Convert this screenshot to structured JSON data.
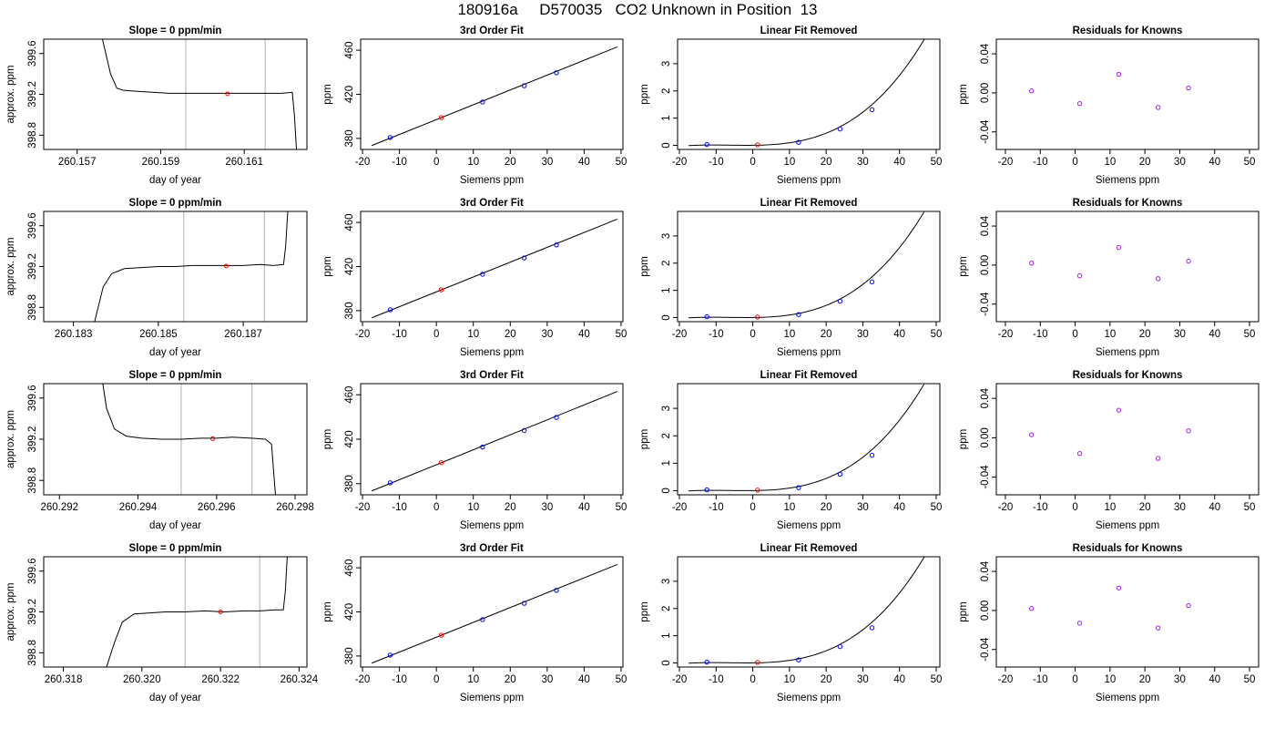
{
  "page": {
    "title": "180916a     D570035   CO2 Unknown in Position  13"
  },
  "colors": {
    "line": "#000000",
    "known_point": "#0000ff",
    "unknown_point": "#ff0000",
    "residual_point": "#a020f0",
    "vline": "#bebebe"
  },
  "chart_data": [
    {
      "type": "line",
      "row": 1,
      "title": "Slope =  0  ppm/min",
      "xlabel": "day of year",
      "ylabel": "approx. ppm",
      "xlim": [
        260.1562,
        260.1625
      ],
      "ylim": [
        398.66,
        399.74
      ],
      "xticks": [
        260.157,
        260.159,
        260.161
      ],
      "xtick_labels": [
        "260.157",
        "260.159",
        "260.161"
      ],
      "yticks": [
        398.8,
        399.2,
        399.6
      ],
      "ytick_labels": [
        "398.8",
        "399.2",
        "399.6"
      ],
      "vlines": [
        260.1596,
        260.1615
      ],
      "trace": [
        [
          260.1576,
          399.75
        ],
        [
          260.1578,
          399.4
        ],
        [
          260.15795,
          399.26
        ],
        [
          260.1581,
          399.24
        ],
        [
          260.1584,
          399.23
        ],
        [
          260.1588,
          399.22
        ],
        [
          260.1592,
          399.21
        ],
        [
          260.1596,
          399.21
        ],
        [
          260.1601,
          399.21
        ],
        [
          260.1606,
          399.21
        ],
        [
          260.1611,
          399.21
        ],
        [
          260.16155,
          399.21
        ],
        [
          260.1619,
          399.21
        ],
        [
          260.16215,
          399.22
        ],
        [
          260.1622,
          399.0
        ],
        [
          260.16225,
          398.66
        ]
      ],
      "marker": [
        260.1606,
        399.205
      ]
    },
    {
      "type": "line",
      "row": 2,
      "title": "Slope =  0  ppm/min",
      "xlabel": "day of year",
      "ylabel": "approx. ppm",
      "xlim": [
        260.1823,
        260.1885
      ],
      "ylim": [
        398.66,
        399.74
      ],
      "xticks": [
        260.183,
        260.185,
        260.187
      ],
      "xtick_labels": [
        "260.183",
        "260.185",
        "260.187"
      ],
      "vlines": [
        260.1856,
        260.1875
      ],
      "yticks": [
        398.8,
        399.2,
        399.6
      ],
      "ytick_labels": [
        "398.8",
        "399.2",
        "399.6"
      ],
      "trace": [
        [
          260.1835,
          398.66
        ],
        [
          260.1837,
          399.0
        ],
        [
          260.1839,
          399.13
        ],
        [
          260.1842,
          399.18
        ],
        [
          260.1846,
          399.19
        ],
        [
          260.185,
          399.2
        ],
        [
          260.1854,
          399.2
        ],
        [
          260.1858,
          399.21
        ],
        [
          260.1862,
          399.21
        ],
        [
          260.1866,
          399.21
        ],
        [
          260.187,
          399.21
        ],
        [
          260.1874,
          399.22
        ],
        [
          260.1877,
          399.21
        ],
        [
          260.18795,
          399.22
        ],
        [
          260.188,
          399.4
        ],
        [
          260.18805,
          399.75
        ]
      ],
      "marker": [
        260.1866,
        399.205
      ]
    },
    {
      "type": "line",
      "row": 3,
      "title": "Slope =  0  ppm/min",
      "xlabel": "day of year",
      "ylabel": "approx. ppm",
      "xlim": [
        260.2916,
        260.2983
      ],
      "ylim": [
        398.66,
        399.74
      ],
      "xticks": [
        260.292,
        260.294,
        260.296,
        260.298
      ],
      "xtick_labels": [
        "260.292",
        "260.294",
        "260.296",
        "260.298"
      ],
      "vlines": [
        260.2951,
        260.2969
      ],
      "yticks": [
        398.8,
        399.2,
        399.6
      ],
      "ytick_labels": [
        "398.8",
        "399.2",
        "399.6"
      ],
      "trace": [
        [
          260.2931,
          399.75
        ],
        [
          260.2932,
          399.5
        ],
        [
          260.2934,
          399.3
        ],
        [
          260.2937,
          399.23
        ],
        [
          260.2941,
          399.21
        ],
        [
          260.2946,
          399.2
        ],
        [
          260.2951,
          399.2
        ],
        [
          260.2956,
          399.21
        ],
        [
          260.296,
          399.21
        ],
        [
          260.2964,
          399.22
        ],
        [
          260.2969,
          399.21
        ],
        [
          260.29725,
          399.2
        ],
        [
          260.2974,
          399.15
        ],
        [
          260.29745,
          398.9
        ],
        [
          260.2975,
          398.66
        ]
      ],
      "marker": [
        260.2959,
        399.205
      ]
    },
    {
      "type": "line",
      "row": 4,
      "title": "Slope =  0  ppm/min",
      "xlabel": "day of year",
      "ylabel": "approx. ppm",
      "xlim": [
        260.3175,
        260.3242
      ],
      "ylim": [
        398.66,
        399.74
      ],
      "xticks": [
        260.318,
        260.32,
        260.322,
        260.324
      ],
      "xtick_labels": [
        "260.318",
        "260.320",
        "260.322",
        "260.324"
      ],
      "vlines": [
        260.3211,
        260.323
      ],
      "yticks": [
        398.8,
        399.2,
        399.6
      ],
      "ytick_labels": [
        "398.8",
        "399.2",
        "399.6"
      ],
      "trace": [
        [
          260.3191,
          398.66
        ],
        [
          260.3193,
          398.9
        ],
        [
          260.3195,
          399.1
        ],
        [
          260.3198,
          399.18
        ],
        [
          260.3202,
          399.19
        ],
        [
          260.3206,
          399.2
        ],
        [
          260.3211,
          399.2
        ],
        [
          260.3216,
          399.21
        ],
        [
          260.3221,
          399.2
        ],
        [
          260.3226,
          399.21
        ],
        [
          260.323,
          399.21
        ],
        [
          260.3234,
          399.22
        ],
        [
          260.3236,
          399.22
        ],
        [
          260.32365,
          399.4
        ],
        [
          260.3237,
          399.75
        ]
      ],
      "marker": [
        260.322,
        399.2
      ]
    },
    {
      "type": "scatter",
      "row": 1,
      "title": "3rd Order Fit",
      "xlabel": "Siemens ppm",
      "ylabel": "ppm",
      "xlim": [
        -20.5,
        50.5
      ],
      "ylim": [
        370,
        470
      ],
      "xticks": [
        -20,
        -10,
        0,
        10,
        20,
        30,
        40,
        50
      ],
      "xtick_labels": [
        "-20",
        "-10",
        "0",
        "10",
        "20",
        "30",
        "40",
        "50"
      ],
      "yticks": [
        380,
        420,
        460
      ],
      "ytick_labels": [
        "380",
        "420",
        "460"
      ],
      "curve": [
        [
          -17.5,
          373.5
        ],
        [
          49,
          463
        ]
      ],
      "points_known": [
        [
          -12.5,
          380.8
        ],
        [
          12.5,
          413.0
        ],
        [
          23.8,
          427.8
        ],
        [
          32.5,
          439.6
        ]
      ],
      "points_unknown": [
        [
          1.3,
          398.9
        ]
      ]
    },
    {
      "type": "scatter",
      "row": 2,
      "title": "3rd Order Fit",
      "xlabel": "Siemens ppm",
      "ylabel": "ppm",
      "xlim": [
        -20.5,
        50.5
      ],
      "ylim": [
        370,
        470
      ],
      "xticks": [
        -20,
        -10,
        0,
        10,
        20,
        30,
        40,
        50
      ],
      "xtick_labels": [
        "-20",
        "-10",
        "0",
        "10",
        "20",
        "30",
        "40",
        "50"
      ],
      "yticks": [
        380,
        420,
        460
      ],
      "ytick_labels": [
        "380",
        "420",
        "460"
      ],
      "curve": [
        [
          -17.5,
          373.5
        ],
        [
          49,
          463
        ]
      ],
      "points_known": [
        [
          -12.5,
          380.8
        ],
        [
          12.5,
          413.0
        ],
        [
          23.8,
          427.8
        ],
        [
          32.5,
          439.6
        ]
      ],
      "points_unknown": [
        [
          1.3,
          398.9
        ]
      ]
    },
    {
      "type": "scatter",
      "row": 3,
      "title": "3rd Order Fit",
      "xlabel": "Siemens ppm",
      "ylabel": "ppm",
      "xlim": [
        -20.5,
        50.5
      ],
      "ylim": [
        370,
        470
      ],
      "xticks": [
        -20,
        -10,
        0,
        10,
        20,
        30,
        40,
        50
      ],
      "xtick_labels": [
        "-20",
        "-10",
        "0",
        "10",
        "20",
        "30",
        "40",
        "50"
      ],
      "yticks": [
        380,
        420,
        460
      ],
      "ytick_labels": [
        "380",
        "420",
        "460"
      ],
      "curve": [
        [
          -17.5,
          373.5
        ],
        [
          49,
          463
        ]
      ],
      "points_known": [
        [
          -12.5,
          380.8
        ],
        [
          12.5,
          413.0
        ],
        [
          23.8,
          427.8
        ],
        [
          32.5,
          439.6
        ]
      ],
      "points_unknown": [
        [
          1.3,
          398.9
        ]
      ]
    },
    {
      "type": "scatter",
      "row": 4,
      "title": "3rd Order Fit",
      "xlabel": "Siemens ppm",
      "ylabel": "ppm",
      "xlim": [
        -20.5,
        50.5
      ],
      "ylim": [
        370,
        470
      ],
      "xticks": [
        -20,
        -10,
        0,
        10,
        20,
        30,
        40,
        50
      ],
      "xtick_labels": [
        "-20",
        "-10",
        "0",
        "10",
        "20",
        "30",
        "40",
        "50"
      ],
      "yticks": [
        380,
        420,
        460
      ],
      "ytick_labels": [
        "380",
        "420",
        "460"
      ],
      "curve": [
        [
          -17.5,
          373.5
        ],
        [
          49,
          463
        ]
      ],
      "points_known": [
        [
          -12.5,
          380.8
        ],
        [
          12.5,
          413.0
        ],
        [
          23.8,
          427.8
        ],
        [
          32.5,
          439.6
        ]
      ],
      "points_unknown": [
        [
          1.3,
          398.9
        ]
      ]
    },
    {
      "type": "scatter",
      "row": 1,
      "title": "Linear Fit Removed",
      "xlabel": "Siemens ppm",
      "ylabel": "ppm",
      "xlim": [
        -20.5,
        51
      ],
      "ylim": [
        -0.15,
        3.9
      ],
      "xticks": [
        -20,
        -10,
        0,
        10,
        20,
        30,
        40,
        50
      ],
      "xtick_labels": [
        "-20",
        "-10",
        "0",
        "10",
        "20",
        "30",
        "40",
        "50"
      ],
      "yticks": [
        0,
        1,
        2,
        3
      ],
      "ytick_labels": [
        "0",
        "1",
        "2",
        "3"
      ],
      "curve_poly": [
        0.003125,
        0.001438,
        0.0005066,
        2.656e-05
      ],
      "curve_x": [
        -17.5,
        49
      ],
      "points_known": [
        [
          -12.5,
          0.03
        ],
        [
          12.5,
          0.11
        ],
        [
          23.8,
          0.6
        ],
        [
          32.5,
          1.31
        ]
      ],
      "points_unknown": [
        [
          1.3,
          0.02
        ]
      ]
    },
    {
      "type": "scatter",
      "row": 2,
      "title": "Linear Fit Removed",
      "xlabel": "Siemens ppm",
      "ylabel": "ppm",
      "xlim": [
        -20.5,
        51
      ],
      "ylim": [
        -0.15,
        3.9
      ],
      "xticks": [
        -20,
        -10,
        0,
        10,
        20,
        30,
        40,
        50
      ],
      "xtick_labels": [
        "-20",
        "-10",
        "0",
        "10",
        "20",
        "30",
        "40",
        "50"
      ],
      "yticks": [
        0,
        1,
        2,
        3
      ],
      "ytick_labels": [
        "0",
        "1",
        "2",
        "3"
      ],
      "curve_poly": [
        0.003125,
        0.001438,
        0.0005066,
        2.656e-05
      ],
      "curve_x": [
        -17.5,
        49
      ],
      "points_known": [
        [
          -12.5,
          0.03
        ],
        [
          12.5,
          0.11
        ],
        [
          23.8,
          0.6
        ],
        [
          32.5,
          1.31
        ]
      ],
      "points_unknown": [
        [
          1.3,
          0.02
        ]
      ]
    },
    {
      "type": "scatter",
      "row": 3,
      "title": "Linear Fit Removed",
      "xlabel": "Siemens ppm",
      "ylabel": "ppm",
      "xlim": [
        -20.5,
        51
      ],
      "ylim": [
        -0.15,
        3.9
      ],
      "xticks": [
        -20,
        -10,
        0,
        10,
        20,
        30,
        40,
        50
      ],
      "xtick_labels": [
        "-20",
        "-10",
        "0",
        "10",
        "20",
        "30",
        "40",
        "50"
      ],
      "yticks": [
        0,
        1,
        2,
        3
      ],
      "ytick_labels": [
        "0",
        "1",
        "2",
        "3"
      ],
      "curve_poly": [
        0.003125,
        0.001438,
        0.0005066,
        2.656e-05
      ],
      "curve_x": [
        -17.5,
        49
      ],
      "points_known": [
        [
          -12.5,
          0.03
        ],
        [
          12.5,
          0.11
        ],
        [
          23.8,
          0.6
        ],
        [
          32.5,
          1.29
        ]
      ],
      "points_unknown": [
        [
          1.3,
          0.02
        ]
      ]
    },
    {
      "type": "scatter",
      "row": 4,
      "title": "Linear Fit Removed",
      "xlabel": "Siemens ppm",
      "ylabel": "ppm",
      "xlim": [
        -20.5,
        51
      ],
      "ylim": [
        -0.15,
        3.9
      ],
      "xticks": [
        -20,
        -10,
        0,
        10,
        20,
        30,
        40,
        50
      ],
      "xtick_labels": [
        "-20",
        "-10",
        "0",
        "10",
        "20",
        "30",
        "40",
        "50"
      ],
      "yticks": [
        0,
        1,
        2,
        3
      ],
      "ytick_labels": [
        "0",
        "1",
        "2",
        "3"
      ],
      "curve_poly": [
        0.003125,
        0.001438,
        0.0005066,
        2.656e-05
      ],
      "curve_x": [
        -17.5,
        49
      ],
      "points_known": [
        [
          -12.5,
          0.03
        ],
        [
          12.5,
          0.11
        ],
        [
          23.8,
          0.6
        ],
        [
          32.5,
          1.29
        ]
      ],
      "points_unknown": [
        [
          1.3,
          0.02
        ]
      ]
    },
    {
      "type": "scatter",
      "row": 1,
      "title": "Residuals for Knowns",
      "xlabel": "Siemens ppm",
      "ylabel": "ppm",
      "xlim": [
        -22.6,
        52.6
      ],
      "ylim": [
        -0.058,
        0.055
      ],
      "xticks": [
        -20,
        -10,
        0,
        10,
        20,
        30,
        40,
        50
      ],
      "xtick_labels": [
        "-20",
        "-10",
        "0",
        "10",
        "20",
        "30",
        "40",
        "50"
      ],
      "yticks": [
        -0.04,
        0,
        0.04
      ],
      "ytick_labels": [
        "-0.04",
        "0.00",
        "0.04"
      ],
      "points_residual": [
        [
          -12.5,
          0.002
        ],
        [
          1.3,
          -0.011
        ],
        [
          12.5,
          0.019
        ],
        [
          23.8,
          -0.015
        ],
        [
          32.5,
          0.005
        ]
      ]
    },
    {
      "type": "scatter",
      "row": 2,
      "title": "Residuals for Knowns",
      "xlabel": "Siemens ppm",
      "ylabel": "ppm",
      "xlim": [
        -22.6,
        52.6
      ],
      "ylim": [
        -0.058,
        0.055
      ],
      "xticks": [
        -20,
        -10,
        0,
        10,
        20,
        30,
        40,
        50
      ],
      "xtick_labels": [
        "-20",
        "-10",
        "0",
        "10",
        "20",
        "30",
        "40",
        "50"
      ],
      "yticks": [
        -0.04,
        0,
        0.04
      ],
      "ytick_labels": [
        "-0.04",
        "0.00",
        "0.04"
      ],
      "points_residual": [
        [
          -12.5,
          0.002
        ],
        [
          1.3,
          -0.011
        ],
        [
          12.5,
          0.018
        ],
        [
          23.8,
          -0.014
        ],
        [
          32.5,
          0.004
        ]
      ]
    },
    {
      "type": "scatter",
      "row": 3,
      "title": "Residuals for Knowns",
      "xlabel": "Siemens ppm",
      "ylabel": "ppm",
      "xlim": [
        -22.6,
        52.6
      ],
      "ylim": [
        -0.058,
        0.055
      ],
      "xticks": [
        -20,
        -10,
        0,
        10,
        20,
        30,
        40,
        50
      ],
      "xtick_labels": [
        "-20",
        "-10",
        "0",
        "10",
        "20",
        "30",
        "40",
        "50"
      ],
      "yticks": [
        -0.04,
        0,
        0.04
      ],
      "ytick_labels": [
        "-0.04",
        "0.00",
        "0.04"
      ],
      "points_residual": [
        [
          -12.5,
          0.003
        ],
        [
          1.3,
          -0.016
        ],
        [
          12.5,
          0.028
        ],
        [
          23.8,
          -0.021
        ],
        [
          32.5,
          0.007
        ]
      ]
    },
    {
      "type": "scatter",
      "row": 4,
      "title": "Residuals for Knowns",
      "xlabel": "Siemens ppm",
      "ylabel": "ppm",
      "xlim": [
        -22.6,
        52.6
      ],
      "ylim": [
        -0.058,
        0.055
      ],
      "xticks": [
        -20,
        -10,
        0,
        10,
        20,
        30,
        40,
        50
      ],
      "xtick_labels": [
        "-20",
        "-10",
        "0",
        "10",
        "20",
        "30",
        "40",
        "50"
      ],
      "yticks": [
        -0.04,
        0,
        0.04
      ],
      "ytick_labels": [
        "-0.04",
        "0.00",
        "0.04"
      ],
      "points_residual": [
        [
          -12.5,
          0.002
        ],
        [
          1.3,
          -0.013
        ],
        [
          12.5,
          0.023
        ],
        [
          23.8,
          -0.018
        ],
        [
          32.5,
          0.005
        ]
      ]
    }
  ]
}
